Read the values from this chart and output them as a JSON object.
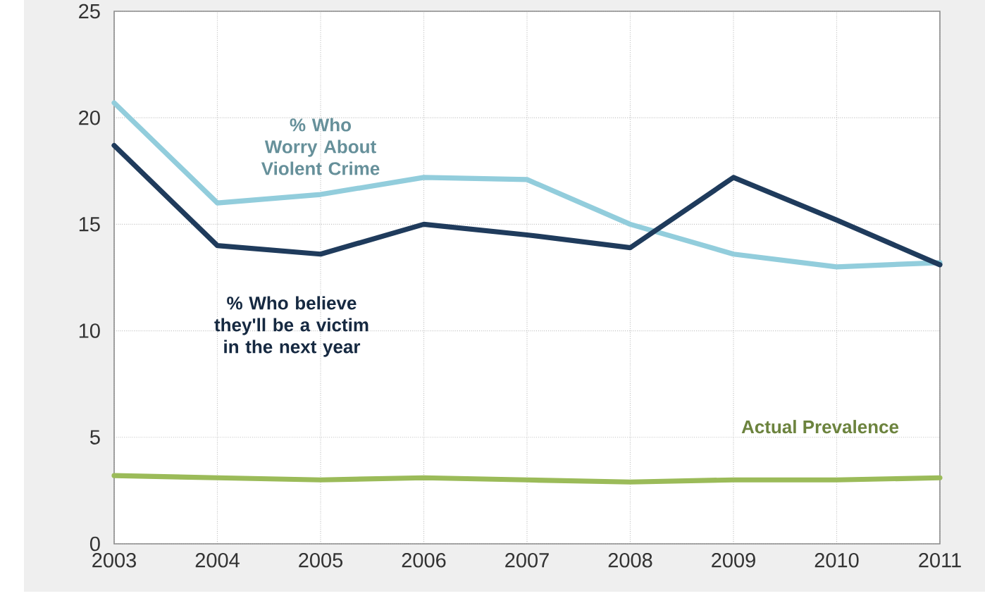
{
  "chart_data": {
    "type": "line",
    "categories": [
      "2003",
      "2004",
      "2005",
      "2006",
      "2007",
      "2008",
      "2009",
      "2010",
      "2011"
    ],
    "series": [
      {
        "name": "% Who Worry About Violent Crime",
        "color": "#92cddc",
        "values": [
          20.7,
          16.0,
          16.4,
          17.2,
          17.1,
          15.0,
          13.6,
          13.0,
          13.2
        ]
      },
      {
        "name": "% Who believe they'll be a victim in the next year",
        "color": "#1f3b5c",
        "values": [
          18.7,
          14.0,
          13.6,
          15.0,
          14.5,
          13.9,
          17.2,
          15.2,
          13.1
        ]
      },
      {
        "name": "Actual Prevalence",
        "color": "#9bbb59",
        "values": [
          3.2,
          3.1,
          3.0,
          3.1,
          3.0,
          2.9,
          3.0,
          3.0,
          3.1
        ]
      }
    ],
    "ylim": [
      0,
      25
    ],
    "yticks": [
      0,
      5,
      10,
      15,
      20,
      25
    ],
    "grid": true,
    "legend": false,
    "marker": "none",
    "line_style": "solid"
  }
}
